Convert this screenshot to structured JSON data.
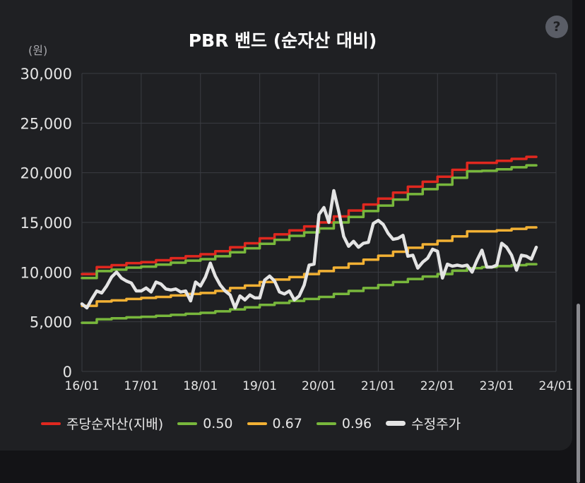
{
  "header": {
    "title": "PBR 밴드 (순자산 대비)",
    "help_icon": "?",
    "unit": "(원)"
  },
  "chart_data": {
    "type": "line",
    "title": "PBR 밴드 (순자산 대비)",
    "ylabel": "(원)",
    "ylim": [
      0,
      30000
    ],
    "yticks": [
      0,
      5000,
      10000,
      15000,
      20000,
      25000,
      30000
    ],
    "ytick_labels": [
      "0",
      "5,000",
      "10,000",
      "15,000",
      "20,000",
      "25,000",
      "30,000"
    ],
    "xlim": [
      "2016-01",
      "2024-01"
    ],
    "xtick_labels": [
      "16/01",
      "17/01",
      "18/01",
      "19/01",
      "20/01",
      "21/01",
      "22/01",
      "23/01",
      "24/01"
    ],
    "grid": true,
    "legend_position": "bottom",
    "series": [
      {
        "name": "주당순자산(지배)",
        "color": "#e0281f",
        "style": "step",
        "points": [
          [
            "2016-01",
            9800
          ],
          [
            "2016-04",
            10500
          ],
          [
            "2016-07",
            10700
          ],
          [
            "2016-10",
            10900
          ],
          [
            "2017-01",
            11000
          ],
          [
            "2017-04",
            11200
          ],
          [
            "2017-07",
            11400
          ],
          [
            "2017-10",
            11600
          ],
          [
            "2018-01",
            11800
          ],
          [
            "2018-04",
            12100
          ],
          [
            "2018-07",
            12500
          ],
          [
            "2018-10",
            12900
          ],
          [
            "2019-01",
            13400
          ],
          [
            "2019-04",
            13800
          ],
          [
            "2019-07",
            14200
          ],
          [
            "2019-10",
            14600
          ],
          [
            "2020-01",
            15000
          ],
          [
            "2020-04",
            15600
          ],
          [
            "2020-07",
            16200
          ],
          [
            "2020-10",
            16800
          ],
          [
            "2021-01",
            17400
          ],
          [
            "2021-04",
            18000
          ],
          [
            "2021-07",
            18600
          ],
          [
            "2021-10",
            19100
          ],
          [
            "2022-01",
            19600
          ],
          [
            "2022-04",
            20300
          ],
          [
            "2022-07",
            21000
          ],
          [
            "2022-10",
            21000
          ],
          [
            "2023-01",
            21200
          ],
          [
            "2023-04",
            21400
          ],
          [
            "2023-07",
            21600
          ],
          [
            "2023-09",
            21600
          ]
        ]
      },
      {
        "name": "0.50",
        "color": "#78b73c",
        "style": "step",
        "points": [
          [
            "2016-01",
            4900
          ],
          [
            "2016-04",
            5250
          ],
          [
            "2016-07",
            5350
          ],
          [
            "2016-10",
            5450
          ],
          [
            "2017-01",
            5500
          ],
          [
            "2017-04",
            5600
          ],
          [
            "2017-07",
            5700
          ],
          [
            "2017-10",
            5800
          ],
          [
            "2018-01",
            5900
          ],
          [
            "2018-04",
            6050
          ],
          [
            "2018-07",
            6250
          ],
          [
            "2018-10",
            6450
          ],
          [
            "2019-01",
            6700
          ],
          [
            "2019-04",
            6900
          ],
          [
            "2019-07",
            7100
          ],
          [
            "2019-10",
            7300
          ],
          [
            "2020-01",
            7500
          ],
          [
            "2020-04",
            7800
          ],
          [
            "2020-07",
            8100
          ],
          [
            "2020-10",
            8400
          ],
          [
            "2021-01",
            8700
          ],
          [
            "2021-04",
            9000
          ],
          [
            "2021-07",
            9300
          ],
          [
            "2021-10",
            9550
          ],
          [
            "2022-01",
            9800
          ],
          [
            "2022-04",
            10150
          ],
          [
            "2022-07",
            10400
          ],
          [
            "2022-10",
            10500
          ],
          [
            "2023-01",
            10600
          ],
          [
            "2023-04",
            10700
          ],
          [
            "2023-07",
            10800
          ],
          [
            "2023-09",
            10800
          ]
        ]
      },
      {
        "name": "0.67",
        "color": "#f2b134",
        "style": "step",
        "points": [
          [
            "2016-01",
            6600
          ],
          [
            "2016-04",
            7050
          ],
          [
            "2016-07",
            7150
          ],
          [
            "2016-10",
            7300
          ],
          [
            "2017-01",
            7400
          ],
          [
            "2017-04",
            7500
          ],
          [
            "2017-07",
            7650
          ],
          [
            "2017-10",
            7800
          ],
          [
            "2018-01",
            7900
          ],
          [
            "2018-04",
            8100
          ],
          [
            "2018-07",
            8400
          ],
          [
            "2018-10",
            8650
          ],
          [
            "2019-01",
            9000
          ],
          [
            "2019-04",
            9250
          ],
          [
            "2019-07",
            9500
          ],
          [
            "2019-10",
            9800
          ],
          [
            "2020-01",
            10100
          ],
          [
            "2020-04",
            10450
          ],
          [
            "2020-07",
            10850
          ],
          [
            "2020-10",
            11250
          ],
          [
            "2021-01",
            11650
          ],
          [
            "2021-04",
            12050
          ],
          [
            "2021-07",
            12450
          ],
          [
            "2021-10",
            12800
          ],
          [
            "2022-01",
            13150
          ],
          [
            "2022-04",
            13600
          ],
          [
            "2022-07",
            14100
          ],
          [
            "2022-10",
            14100
          ],
          [
            "2023-01",
            14200
          ],
          [
            "2023-04",
            14350
          ],
          [
            "2023-07",
            14500
          ],
          [
            "2023-09",
            14500
          ]
        ]
      },
      {
        "name": "0.96",
        "color": "#78b73c",
        "style": "step",
        "points": [
          [
            "2016-01",
            9400
          ],
          [
            "2016-04",
            10100
          ],
          [
            "2016-07",
            10250
          ],
          [
            "2016-10",
            10450
          ],
          [
            "2017-01",
            10550
          ],
          [
            "2017-04",
            10750
          ],
          [
            "2017-07",
            10950
          ],
          [
            "2017-10",
            11150
          ],
          [
            "2018-01",
            11300
          ],
          [
            "2018-04",
            11600
          ],
          [
            "2018-07",
            12000
          ],
          [
            "2018-10",
            12400
          ],
          [
            "2019-01",
            12850
          ],
          [
            "2019-04",
            13250
          ],
          [
            "2019-07",
            13650
          ],
          [
            "2019-10",
            14000
          ],
          [
            "2020-01",
            14400
          ],
          [
            "2020-04",
            15000
          ],
          [
            "2020-07",
            15550
          ],
          [
            "2020-10",
            16150
          ],
          [
            "2021-01",
            16700
          ],
          [
            "2021-04",
            17300
          ],
          [
            "2021-07",
            17850
          ],
          [
            "2021-10",
            18350
          ],
          [
            "2022-01",
            18800
          ],
          [
            "2022-04",
            19500
          ],
          [
            "2022-07",
            20150
          ],
          [
            "2022-10",
            20200
          ],
          [
            "2023-01",
            20350
          ],
          [
            "2023-04",
            20550
          ],
          [
            "2023-07",
            20750
          ],
          [
            "2023-09",
            20750
          ]
        ]
      },
      {
        "name": "수정주가",
        "color": "#e4e4e4",
        "style": "line",
        "points": [
          [
            "2016-01",
            6800
          ],
          [
            "2016-02",
            6400
          ],
          [
            "2016-03",
            7300
          ],
          [
            "2016-04",
            8100
          ],
          [
            "2016-05",
            7900
          ],
          [
            "2016-06",
            8600
          ],
          [
            "2016-07",
            9500
          ],
          [
            "2016-08",
            10000
          ],
          [
            "2016-09",
            9400
          ],
          [
            "2016-10",
            9100
          ],
          [
            "2016-11",
            8900
          ],
          [
            "2016-12",
            8100
          ],
          [
            "2017-01",
            8100
          ],
          [
            "2017-02",
            8400
          ],
          [
            "2017-03",
            8000
          ],
          [
            "2017-04",
            9000
          ],
          [
            "2017-05",
            8800
          ],
          [
            "2017-06",
            8300
          ],
          [
            "2017-07",
            8200
          ],
          [
            "2017-08",
            8300
          ],
          [
            "2017-09",
            8000
          ],
          [
            "2017-10",
            8100
          ],
          [
            "2017-11",
            7100
          ],
          [
            "2017-12",
            9000
          ],
          [
            "2018-01",
            8600
          ],
          [
            "2018-02",
            9500
          ],
          [
            "2018-03",
            10900
          ],
          [
            "2018-04",
            9600
          ],
          [
            "2018-05",
            8700
          ],
          [
            "2018-06",
            8100
          ],
          [
            "2018-07",
            7700
          ],
          [
            "2018-08",
            6400
          ],
          [
            "2018-09",
            7600
          ],
          [
            "2018-10",
            7200
          ],
          [
            "2018-11",
            7700
          ],
          [
            "2018-12",
            7400
          ],
          [
            "2019-01",
            7400
          ],
          [
            "2019-02",
            9200
          ],
          [
            "2019-03",
            9600
          ],
          [
            "2019-04",
            9100
          ],
          [
            "2019-05",
            8000
          ],
          [
            "2019-06",
            7800
          ],
          [
            "2019-07",
            8100
          ],
          [
            "2019-08",
            7200
          ],
          [
            "2019-09",
            7600
          ],
          [
            "2019-10",
            8700
          ],
          [
            "2019-11",
            10700
          ],
          [
            "2019-12",
            10800
          ],
          [
            "2020-01",
            15800
          ],
          [
            "2020-02",
            16500
          ],
          [
            "2020-03",
            15000
          ],
          [
            "2020-04",
            18200
          ],
          [
            "2020-05",
            16100
          ],
          [
            "2020-06",
            13600
          ],
          [
            "2020-07",
            12600
          ],
          [
            "2020-08",
            13100
          ],
          [
            "2020-09",
            12500
          ],
          [
            "2020-10",
            12900
          ],
          [
            "2020-11",
            13000
          ],
          [
            "2020-12",
            14900
          ],
          [
            "2021-01",
            15200
          ],
          [
            "2021-02",
            14800
          ],
          [
            "2021-03",
            13900
          ],
          [
            "2021-04",
            13300
          ],
          [
            "2021-05",
            13400
          ],
          [
            "2021-06",
            13700
          ],
          [
            "2021-07",
            11600
          ],
          [
            "2021-08",
            11700
          ],
          [
            "2021-09",
            10400
          ],
          [
            "2021-10",
            11000
          ],
          [
            "2021-11",
            11400
          ],
          [
            "2021-12",
            12300
          ],
          [
            "2022-01",
            12100
          ],
          [
            "2022-02",
            9400
          ],
          [
            "2022-03",
            10800
          ],
          [
            "2022-04",
            10600
          ],
          [
            "2022-05",
            10700
          ],
          [
            "2022-06",
            10600
          ],
          [
            "2022-07",
            10700
          ],
          [
            "2022-08",
            10000
          ],
          [
            "2022-09",
            11200
          ],
          [
            "2022-10",
            12200
          ],
          [
            "2022-11",
            10500
          ],
          [
            "2022-12",
            10500
          ],
          [
            "2023-01",
            10700
          ],
          [
            "2023-02",
            12900
          ],
          [
            "2023-03",
            12500
          ],
          [
            "2023-04",
            11700
          ],
          [
            "2023-05",
            10200
          ],
          [
            "2023-06",
            11700
          ],
          [
            "2023-07",
            11600
          ],
          [
            "2023-08",
            11300
          ],
          [
            "2023-09",
            12500
          ]
        ]
      }
    ]
  },
  "legend": [
    {
      "label": "주당순자산(지배)",
      "color": "#e0281f"
    },
    {
      "label": "0.50",
      "color": "#78b73c"
    },
    {
      "label": "0.67",
      "color": "#f2b134"
    },
    {
      "label": "0.96",
      "color": "#78b73c"
    },
    {
      "label": "수정주가",
      "color": "#e4e4e4"
    }
  ]
}
